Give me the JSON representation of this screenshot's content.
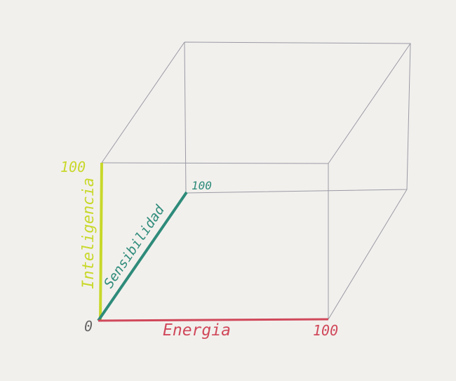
{
  "origin_label": "0",
  "axes": [
    {
      "label": "Inteligencia",
      "max_label": "100",
      "color": "#c8d82a"
    },
    {
      "label": "Sensibilidad",
      "max_label": "100",
      "color": "#2e8b7a"
    },
    {
      "label": "Energia",
      "max_label": "100",
      "color": "#d0485a"
    }
  ]
}
